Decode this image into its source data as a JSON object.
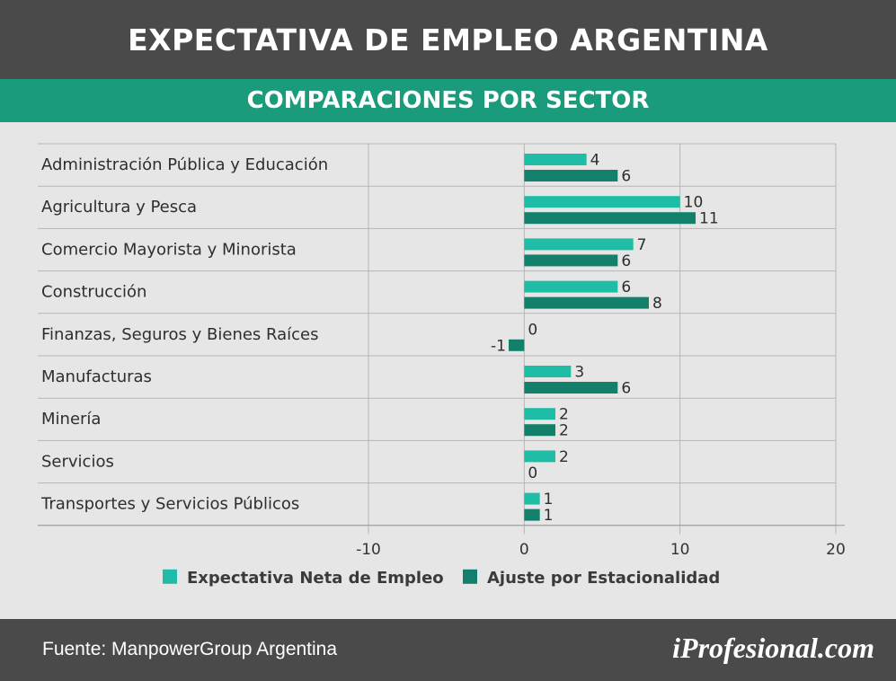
{
  "header": {
    "title": "EXPECTATIVA DE EMPLEO ARGENTINA",
    "subtitle": "COMPARACIONES POR SECTOR"
  },
  "footer": {
    "source": "Fuente: ManpowerGroup Argentina",
    "logo": "iProfesional.com"
  },
  "colors": {
    "header_bg": "#4a4a4a",
    "subheader_bg": "#1a9b7c",
    "background": "#e6e6e6",
    "series_light": "#1fbda6",
    "series_dark": "#12806a"
  },
  "chart_data": {
    "type": "bar",
    "orientation": "horizontal",
    "categories": [
      "Administración Pública y Educación",
      "Agricultura y Pesca",
      "Comercio Mayorista y Minorista",
      "Construcción",
      "Finanzas, Seguros y Bienes Raíces",
      "Manufacturas",
      "Minería",
      "Servicios",
      "Transportes y Servicios Públicos"
    ],
    "series": [
      {
        "name": "Expectativa Neta de Empleo",
        "color": "#1fbda6",
        "values": [
          4,
          10,
          7,
          6,
          0,
          3,
          2,
          2,
          1
        ]
      },
      {
        "name": "Ajuste por Estacionalidad",
        "color": "#12806a",
        "values": [
          6,
          11,
          6,
          8,
          -1,
          6,
          2,
          0,
          1
        ]
      }
    ],
    "xlim": [
      -10,
      20
    ],
    "xticks": [
      "-10",
      "0",
      "10",
      "20"
    ],
    "grid": true,
    "legend_position": "bottom"
  }
}
